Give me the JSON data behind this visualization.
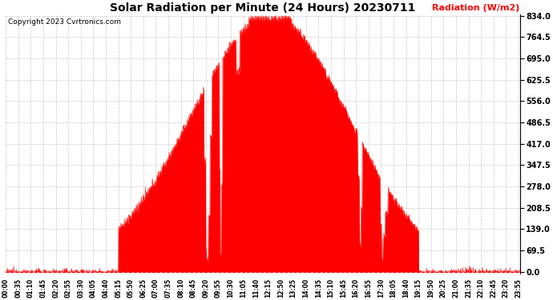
{
  "title": "Solar Radiation per Minute (24 Hours) 20230711",
  "copyright_text": "Copyright 2023 Cvrtronics.com",
  "ylabel": "Radiation (W/m2)",
  "ylabel_color": "#ff0000",
  "background_color": "#ffffff",
  "fill_color": "#ff0000",
  "line_color": "#ff0000",
  "grid_color": "#bbbbbb",
  "ytick_values": [
    0.0,
    69.5,
    139.0,
    208.5,
    278.0,
    347.5,
    417.0,
    486.5,
    556.0,
    625.5,
    695.0,
    764.5,
    834.0
  ],
  "ymax": 834.0,
  "ymin": 0.0,
  "total_minutes": 1440,
  "sunrise_minute": 315,
  "sunset_minute": 1155,
  "peak_value": 834.0,
  "tick_interval_minutes": 35,
  "xtick_labels": [
    "00:00",
    "00:35",
    "01:10",
    "01:45",
    "02:20",
    "02:55",
    "03:30",
    "04:05",
    "04:40",
    "05:15",
    "05:50",
    "06:25",
    "07:00",
    "07:35",
    "08:10",
    "08:45",
    "09:20",
    "09:55",
    "10:30",
    "11:05",
    "11:40",
    "12:15",
    "12:50",
    "13:25",
    "14:00",
    "14:35",
    "15:10",
    "15:45",
    "16:20",
    "16:55",
    "17:30",
    "18:05",
    "18:40",
    "19:15",
    "19:50",
    "20:25",
    "21:00",
    "21:35",
    "22:10",
    "22:45",
    "23:20",
    "23:55"
  ]
}
